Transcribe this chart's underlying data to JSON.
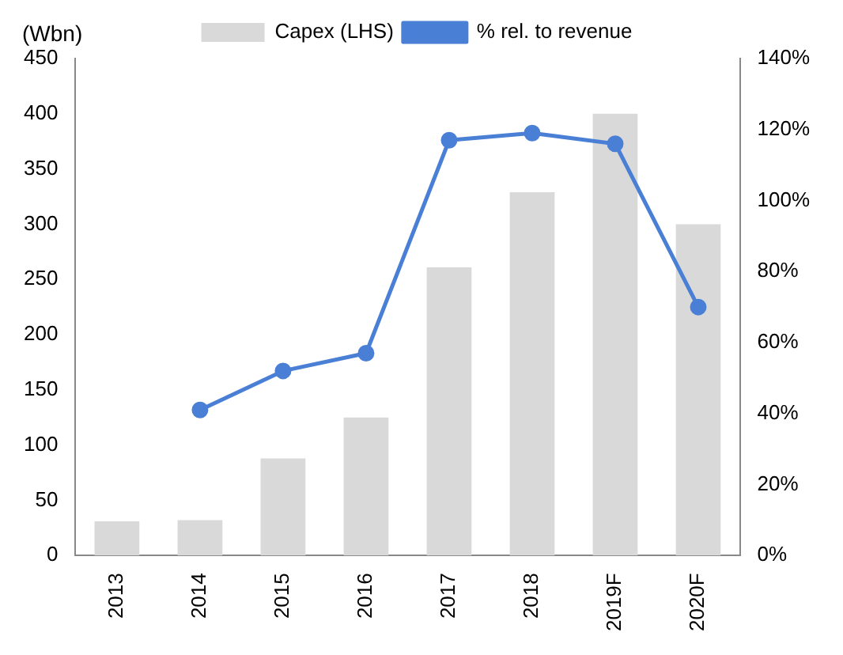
{
  "chart_data": {
    "type": "bar",
    "ylabel": "(Wbn)",
    "categories": [
      "2013",
      "2014",
      "2015",
      "2016",
      "2017",
      "2018",
      "2019F",
      "2020F"
    ],
    "series": [
      {
        "name": "Capex (LHS)",
        "color": "#d9d9d9",
        "values": [
          31,
          32,
          88,
          125,
          261,
          329,
          400,
          300
        ]
      },
      {
        "name": "% rel. to revenue",
        "type": "line",
        "axis": "y2",
        "color": "#4a7fd6",
        "values": [
          null,
          41,
          52,
          57,
          117,
          119,
          116,
          70
        ]
      }
    ],
    "ylim": [
      0,
      450
    ],
    "yticks": [
      0,
      50,
      100,
      150,
      200,
      250,
      300,
      350,
      400,
      450
    ],
    "y2lim": [
      0,
      140
    ],
    "y2ticks": [
      {
        "value": 0,
        "label": "0%"
      },
      {
        "value": 20,
        "label": "20%"
      },
      {
        "value": 40,
        "label": "40%"
      },
      {
        "value": 60,
        "label": "60%"
      },
      {
        "value": 80,
        "label": "80%"
      },
      {
        "value": 100,
        "label": "100%"
      },
      {
        "value": 120,
        "label": "120%"
      },
      {
        "value": 140,
        "label": "140%"
      }
    ],
    "grid": false,
    "legend": "top",
    "marker": "circle",
    "line_style": "solid"
  }
}
